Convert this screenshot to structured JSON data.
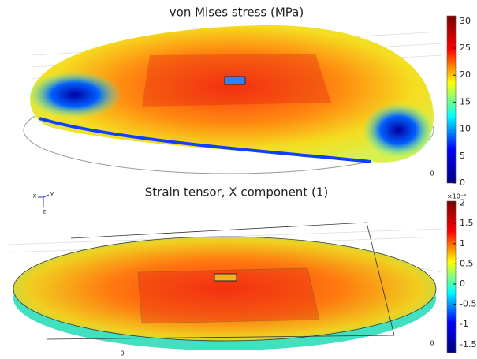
{
  "chart_data": [
    {
      "type": "surface",
      "title": "von Mises stress (MPa)",
      "colormap": [
        "#00007f",
        "#0000ff",
        "#00ffff",
        "#ffff00",
        "#ff0000",
        "#7f0000"
      ],
      "ylim": [
        0,
        31
      ],
      "yticks": [
        0,
        5,
        10,
        15,
        20,
        25,
        30
      ],
      "annotations": [
        "0"
      ]
    },
    {
      "type": "surface",
      "title": "Strain tensor, X component (1)",
      "colormap": [
        "#00007f",
        "#0000ff",
        "#00ffff",
        "#ffff00",
        "#ff0000",
        "#7f0000"
      ],
      "ylim": [
        -1.7,
        2.05
      ],
      "yticks": [
        -1.5,
        -1,
        -0.5,
        0,
        0.5,
        1,
        1.5,
        2
      ],
      "multiplier": "×10⁻³",
      "annotations": [
        "0",
        "0"
      ],
      "axis_triad": [
        "x",
        "y",
        "z"
      ]
    }
  ]
}
